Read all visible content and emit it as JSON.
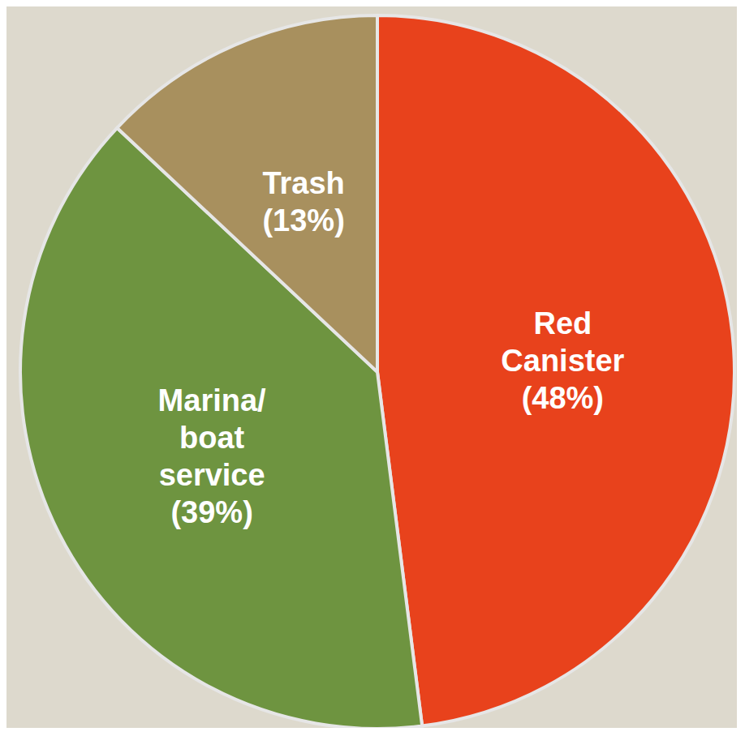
{
  "chart_data": {
    "type": "pie",
    "categories": [
      "Red Canister",
      "Marina/ boat service",
      "Trash"
    ],
    "values": [
      48,
      39,
      13
    ],
    "value_labels": [
      "(48%)",
      "(39%)",
      "(13%)"
    ],
    "colors": [
      "#e8421c",
      "#6e9440",
      "#a8905e"
    ],
    "data_labels": true
  }
}
